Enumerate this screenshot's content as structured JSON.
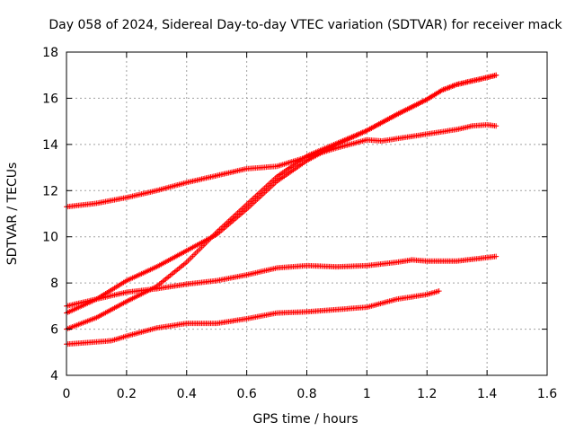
{
  "chart_data": {
    "type": "scatter",
    "title": "Day 058 of 2024, Sidereal Day-to-day VTEC variation (SDTVAR) for receiver mack",
    "xlabel": "GPS time / hours",
    "ylabel": "SDTVAR / TECUs",
    "xlim": [
      0,
      1.6
    ],
    "ylim": [
      4,
      18
    ],
    "xticks": [
      0,
      0.2,
      0.4,
      0.6,
      0.8,
      1,
      1.2,
      1.4,
      1.6
    ],
    "xtick_labels": [
      "0",
      "0.2",
      "0.4",
      "0.6",
      "0.8",
      "1",
      "1.2",
      "1.4",
      "1.6"
    ],
    "yticks": [
      4,
      6,
      8,
      10,
      12,
      14,
      16,
      18
    ],
    "ytick_labels": [
      "4",
      "6",
      "8",
      "10",
      "12",
      "14",
      "16",
      "18"
    ],
    "grid": true,
    "marker": "+",
    "color": "#ff0000",
    "series": [
      {
        "name": "series-1",
        "x": [
          0,
          0.1,
          0.2,
          0.3,
          0.4,
          0.5,
          0.6,
          0.7,
          0.8,
          0.9,
          1.0,
          1.05,
          1.1,
          1.2,
          1.3,
          1.35,
          1.4,
          1.43
        ],
        "y": [
          11.3,
          11.45,
          11.7,
          12.0,
          12.35,
          12.65,
          12.95,
          13.05,
          13.45,
          13.85,
          14.2,
          14.15,
          14.25,
          14.45,
          14.65,
          14.8,
          14.85,
          14.8
        ]
      },
      {
        "name": "series-2",
        "x": [
          0,
          0.1,
          0.2,
          0.3,
          0.4,
          0.5,
          0.6,
          0.7,
          0.8,
          0.9,
          1.0,
          1.1,
          1.2,
          1.25,
          1.3,
          1.4,
          1.43
        ],
        "y": [
          6.7,
          7.3,
          8.1,
          8.7,
          9.4,
          10.1,
          11.2,
          12.4,
          13.3,
          14.0,
          14.6,
          15.3,
          15.95,
          16.35,
          16.6,
          16.9,
          17.0
        ]
      },
      {
        "name": "series-3",
        "x": [
          0,
          0.1,
          0.2,
          0.3,
          0.4,
          0.5,
          0.6,
          0.7,
          0.8,
          0.9,
          1.0,
          1.1,
          1.2,
          1.25,
          1.3,
          1.4,
          1.43
        ],
        "y": [
          6.0,
          6.5,
          7.2,
          7.85,
          8.9,
          10.2,
          11.4,
          12.6,
          13.5,
          14.05,
          14.6,
          15.3,
          15.95,
          16.35,
          16.6,
          16.9,
          17.0
        ]
      },
      {
        "name": "series-4",
        "x": [
          0,
          0.1,
          0.2,
          0.3,
          0.4,
          0.5,
          0.6,
          0.7,
          0.8,
          0.9,
          1.0,
          1.1,
          1.15,
          1.2,
          1.3,
          1.4,
          1.43
        ],
        "y": [
          7.0,
          7.3,
          7.6,
          7.75,
          7.95,
          8.1,
          8.35,
          8.65,
          8.75,
          8.7,
          8.75,
          8.9,
          9.0,
          8.95,
          8.95,
          9.1,
          9.15
        ]
      },
      {
        "name": "series-5",
        "x": [
          0,
          0.05,
          0.1,
          0.15,
          0.2,
          0.3,
          0.4,
          0.5,
          0.6,
          0.7,
          0.8,
          0.9,
          1.0,
          1.1,
          1.2,
          1.24
        ],
        "y": [
          5.35,
          5.4,
          5.45,
          5.5,
          5.7,
          6.05,
          6.25,
          6.25,
          6.45,
          6.7,
          6.75,
          6.85,
          6.95,
          7.3,
          7.5,
          7.65
        ]
      }
    ]
  }
}
